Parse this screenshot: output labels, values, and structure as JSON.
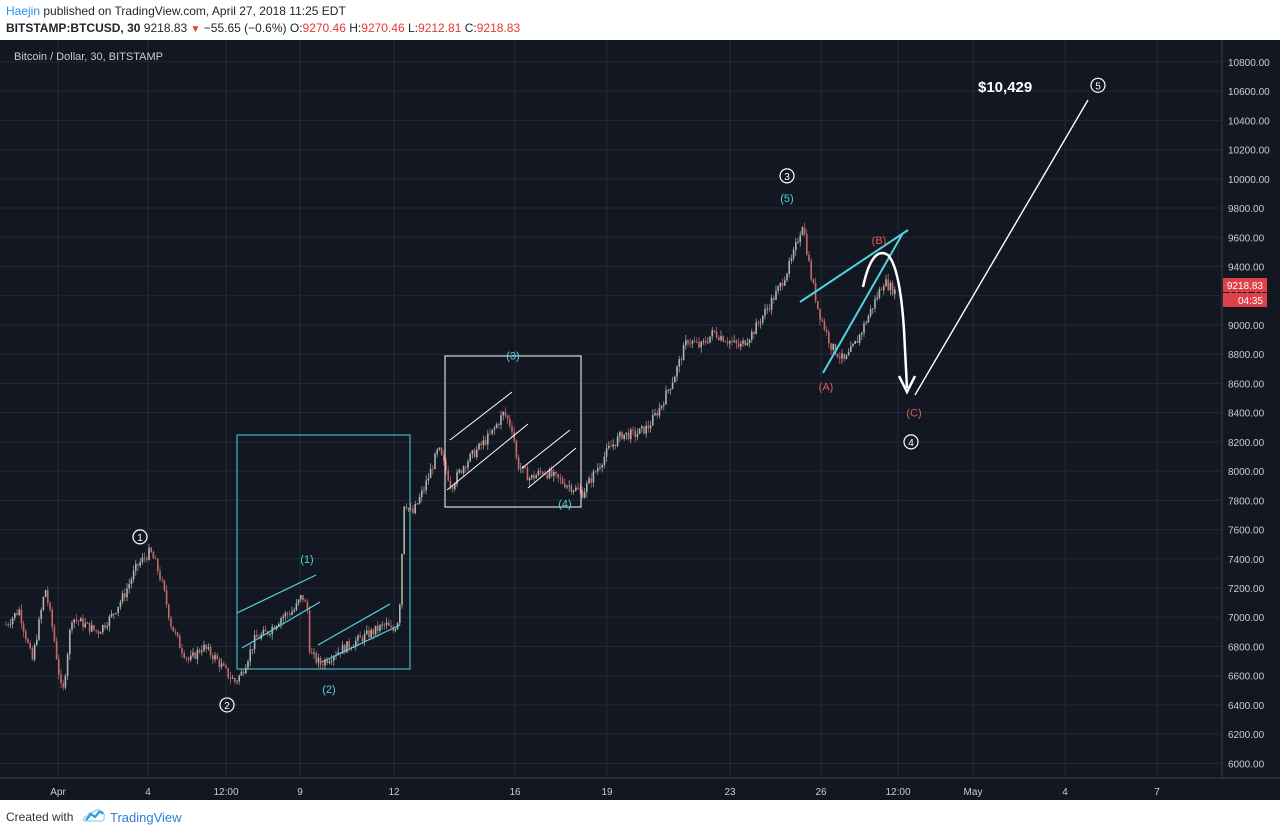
{
  "header": {
    "author": "Haejin",
    "published": " published on TradingView.com, April 27, 2018 11:25 EDT",
    "symbol": "BITSTAMP:BTCUSD, 30",
    "last": "9218.83",
    "change": "−55.65 (−0.6%)",
    "o_label": "O:",
    "o_value": "9270.46",
    "h_label": "H:",
    "h_value": "9270.46",
    "l_label": "L:",
    "l_value": "9212.81",
    "c_label": "C:",
    "c_value": "9218.83",
    "down_icon": "triangle-down-icon"
  },
  "footer": {
    "created_with": "Created with",
    "brand": "TradingView",
    "brand_icon": "tradingview-cloud-icon"
  },
  "colors": {
    "background": "#131722",
    "grid": "#232834",
    "candle_up": "#a9b8ad",
    "candle_down": "#c46a6a",
    "cyan": "#4fd3e0",
    "white": "#ffffff",
    "red_label": "#e25c5c",
    "price_tag": "#e0404a"
  },
  "chart_data": {
    "type": "candlestick",
    "title": "Bitcoin / Dollar, 30, BITSTAMP",
    "y_axis": {
      "ticks": [
        "6000.00",
        "6200.00",
        "6400.00",
        "6600.00",
        "6800.00",
        "7000.00",
        "7200.00",
        "7400.00",
        "7600.00",
        "7800.00",
        "8000.00",
        "8200.00",
        "8400.00",
        "8600.00",
        "8800.00",
        "9000.00",
        "9200.00",
        "9400.00",
        "9600.00",
        "9800.00",
        "10000.00",
        "10200.00",
        "10400.00",
        "10600.00",
        "10800.00"
      ],
      "range": [
        5900,
        10950
      ]
    },
    "x_axis": {
      "ticks": [
        "Apr",
        "4",
        "12:00",
        "9",
        "12",
        "16",
        "19",
        "23",
        "26",
        "12:00",
        "May",
        "4",
        "7"
      ]
    },
    "last_price_label": "9218.83",
    "countdown_label": "04:35",
    "path": [
      [
        0,
        6950
      ],
      [
        1,
        7050
      ],
      [
        2,
        6700
      ],
      [
        3,
        7200
      ],
      [
        3.6,
        6900
      ],
      [
        4.3,
        6450
      ],
      [
        5,
        7000
      ],
      [
        6,
        6950
      ],
      [
        7,
        6900
      ],
      [
        8,
        7000
      ],
      [
        9,
        7150
      ],
      [
        10,
        7350
      ],
      [
        11,
        7450
      ],
      [
        11.5,
        7350
      ],
      [
        12,
        7200
      ],
      [
        12.6,
        6950
      ],
      [
        13.3,
        6800
      ],
      [
        14,
        6700
      ],
      [
        15,
        6800
      ],
      [
        16,
        6720
      ],
      [
        17,
        6600
      ],
      [
        17.5,
        6560
      ],
      [
        18,
        6620
      ],
      [
        19,
        6850
      ],
      [
        20,
        6900
      ],
      [
        21,
        7000
      ],
      [
        22,
        7050
      ],
      [
        22.6,
        7150
      ],
      [
        23,
        7050
      ],
      [
        23.2,
        6750
      ],
      [
        24,
        6680
      ],
      [
        25,
        6750
      ],
      [
        26,
        6800
      ],
      [
        27,
        6850
      ],
      [
        28,
        6900
      ],
      [
        29,
        6950
      ],
      [
        29.5,
        6900
      ],
      [
        30,
        7000
      ],
      [
        30.4,
        7800
      ],
      [
        31,
        7700
      ],
      [
        32,
        7900
      ],
      [
        33,
        8150
      ],
      [
        34,
        7900
      ],
      [
        35,
        8050
      ],
      [
        36,
        8150
      ],
      [
        37,
        8250
      ],
      [
        38,
        8400
      ],
      [
        38.7,
        8280
      ],
      [
        39,
        8050
      ],
      [
        40,
        7950
      ],
      [
        41,
        8000
      ],
      [
        42,
        7950
      ],
      [
        43,
        7900
      ],
      [
        44,
        7850
      ],
      [
        45,
        8000
      ],
      [
        46,
        8150
      ],
      [
        47,
        8250
      ],
      [
        48,
        8250
      ],
      [
        49,
        8300
      ],
      [
        50,
        8450
      ],
      [
        51,
        8650
      ],
      [
        52,
        8900
      ],
      [
        53,
        8850
      ],
      [
        54,
        8950
      ],
      [
        55,
        8900
      ],
      [
        56,
        8850
      ],
      [
        57,
        8950
      ],
      [
        58,
        9100
      ],
      [
        59,
        9250
      ],
      [
        60,
        9450
      ],
      [
        60.8,
        9700
      ],
      [
        61.4,
        9350
      ],
      [
        62,
        9100
      ],
      [
        63,
        8850
      ],
      [
        64,
        8750
      ],
      [
        65,
        8900
      ],
      [
        66,
        9100
      ],
      [
        67,
        9300
      ],
      [
        68,
        9218
      ]
    ],
    "annotations": {
      "wave_labels_white": [
        {
          "id": "w1",
          "text": "1",
          "price": 7550
        },
        {
          "id": "w2",
          "text": "2",
          "price": 6400
        },
        {
          "id": "w3",
          "text": "3",
          "price": 10020
        },
        {
          "id": "w4",
          "text": "4",
          "price": 8200
        },
        {
          "id": "w5",
          "text": "5",
          "price": 10640
        }
      ],
      "wave_labels_cyan": [
        {
          "id": "c1",
          "text": "(1)",
          "price": 7400
        },
        {
          "id": "c2",
          "text": "(2)",
          "price": 6510
        },
        {
          "id": "c3",
          "text": "(3)",
          "price": 8790
        },
        {
          "id": "c4",
          "text": "(4)",
          "price": 7780
        },
        {
          "id": "c5",
          "text": "(5)",
          "price": 9870
        }
      ],
      "wave_labels_red": [
        {
          "id": "rA",
          "text": "(A)",
          "price": 8580
        },
        {
          "id": "rB",
          "text": "(B)",
          "price": 9580
        },
        {
          "id": "rC",
          "text": "(C)",
          "price": 8400
        }
      ],
      "target_text": "$10,429"
    }
  }
}
